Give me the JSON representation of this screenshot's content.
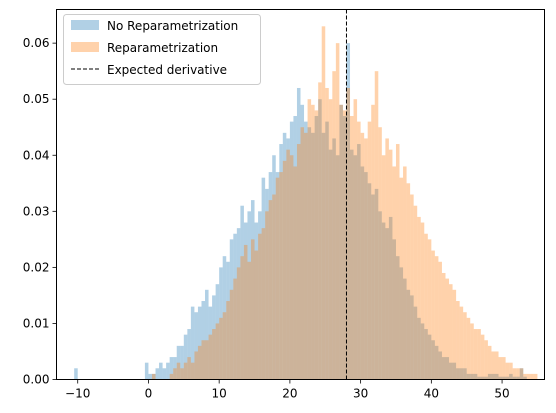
{
  "chart_data": {
    "type": "histogram",
    "title": "",
    "xlabel": "",
    "ylabel": "",
    "xlim": [
      -13,
      56
    ],
    "ylim": [
      0,
      0.066
    ],
    "x_ticks": [
      -10,
      0,
      10,
      20,
      30,
      40,
      50
    ],
    "y_ticks": [
      0.0,
      0.01,
      0.02,
      0.03,
      0.04,
      0.05,
      0.06
    ],
    "grid": false,
    "legend_position": "top-left",
    "bar_alpha": 0.35,
    "series": [
      {
        "name": "No Reparametrization",
        "color": "#1f77b4",
        "bin_start": -10.5,
        "bin_width": 0.5,
        "values": [
          0.002,
          0,
          0,
          0,
          0,
          0,
          0,
          0,
          0,
          0,
          0,
          0,
          0,
          0,
          0,
          0,
          0,
          0,
          0,
          0,
          0.003,
          0.001,
          0.001,
          0.002,
          0.003,
          0.002,
          0.003,
          0.004,
          0.004,
          0.006,
          0.006,
          0.008,
          0.009,
          0.013,
          0.012,
          0.013,
          0.014,
          0.016,
          0.013,
          0.015,
          0.017,
          0.02,
          0.022,
          0.021,
          0.025,
          0.026,
          0.027,
          0.031,
          0.028,
          0.03,
          0.032,
          0.028,
          0.03,
          0.036,
          0.034,
          0.037,
          0.04,
          0.037,
          0.042,
          0.044,
          0.043,
          0.046,
          0.047,
          0.052,
          0.049,
          0.046,
          0.045,
          0.044,
          0.047,
          0.05,
          0.044,
          0.046,
          0.041,
          0.043,
          0.04,
          0.049,
          0.047,
          0.06,
          0.041,
          0.04,
          0.042,
          0.038,
          0.037,
          0.035,
          0.033,
          0.034,
          0.03,
          0.028,
          0.027,
          0.029,
          0.025,
          0.022,
          0.02,
          0.018,
          0.016,
          0.015,
          0.013,
          0.011,
          0.01,
          0.009,
          0.008,
          0.007,
          0.006,
          0.005,
          0.004,
          0.004,
          0.003,
          0.003,
          0.002,
          0.002,
          0.002,
          0.001,
          0.001,
          0.001,
          0.0005,
          0.0005,
          0.0005,
          0.001,
          0.001,
          0.001,
          0.0005,
          0.0005,
          0.0005,
          0.001,
          0.0005,
          0.0005,
          0.002,
          0.0005
        ]
      },
      {
        "name": "Reparametrization",
        "color": "#ff7f0e",
        "bin_start": 0.5,
        "bin_width": 0.5,
        "values": [
          0.001,
          0,
          0,
          0,
          0,
          0.001,
          0.002,
          0.003,
          0.002,
          0.003,
          0.004,
          0.003,
          0.005,
          0.006,
          0.007,
          0.007,
          0.008,
          0.009,
          0.01,
          0.011,
          0.012,
          0.014,
          0.016,
          0.018,
          0.02,
          0.022,
          0.024,
          0.021,
          0.025,
          0.023,
          0.026,
          0.027,
          0.03,
          0.032,
          0.033,
          0.036,
          0.037,
          0.039,
          0.041,
          0.04,
          0.038,
          0.042,
          0.045,
          0.044,
          0.05,
          0.049,
          0.048,
          0.053,
          0.063,
          0.052,
          0.05,
          0.055,
          0.06,
          0.049,
          0.048,
          0.052,
          0.047,
          0.05,
          0.046,
          0.044,
          0.043,
          0.046,
          0.049,
          0.055,
          0.045,
          0.04,
          0.043,
          0.041,
          0.038,
          0.042,
          0.036,
          0.038,
          0.035,
          0.033,
          0.031,
          0.029,
          0.028,
          0.026,
          0.025,
          0.023,
          0.022,
          0.021,
          0.019,
          0.018,
          0.017,
          0.016,
          0.014,
          0.013,
          0.012,
          0.011,
          0.01,
          0.009,
          0.009,
          0.008,
          0.007,
          0.006,
          0.005,
          0.005,
          0.004,
          0.004,
          0.003,
          0.003,
          0.002,
          0.002,
          0.002,
          0.001,
          0.001,
          0.001,
          0.001
        ]
      }
    ],
    "reference_line": {
      "name": "Expected derivative",
      "x": 28,
      "color": "#000000",
      "style": "dashed"
    }
  }
}
